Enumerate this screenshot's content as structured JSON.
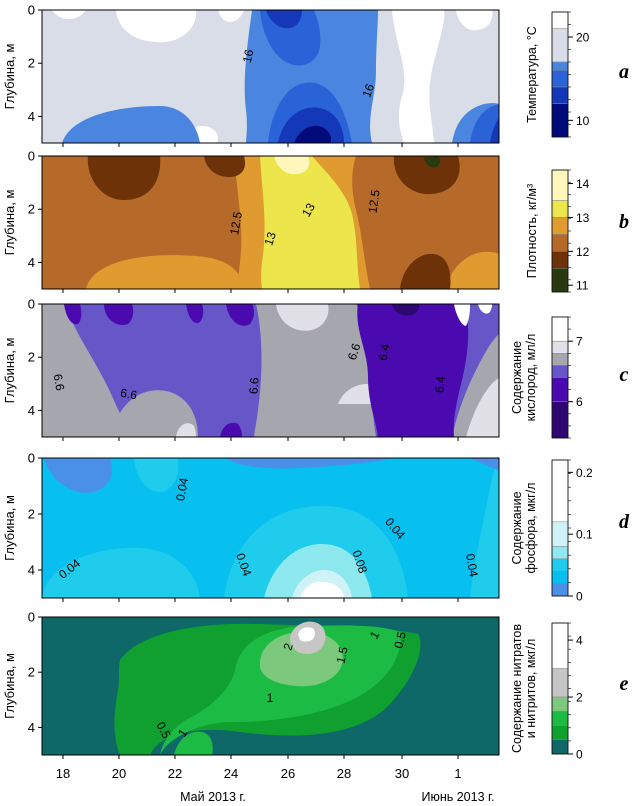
{
  "figure": {
    "x_axis": {
      "tick_labels": [
        "18",
        "20",
        "22",
        "24",
        "26",
        "28",
        "30",
        "1"
      ],
      "month_labels": [
        "Май 2013 г.",
        "Июнь 2013 г."
      ]
    }
  },
  "chart_data": [
    {
      "type": "heatmap",
      "panel_letter": "a",
      "ylabel": "Глубина, м",
      "y_ticks": [
        "0",
        "2",
        "4"
      ],
      "ylim": [
        5,
        0
      ],
      "xlim": [
        "2013-05-17",
        "2013-06-02"
      ],
      "colorbar": {
        "label": "Температура, °С",
        "ticks": [
          "20",
          "10"
        ],
        "range": [
          8,
          23
        ],
        "levels": [
          {
            "from": 21,
            "to": 23,
            "color": "#ffffff"
          },
          {
            "from": 17,
            "to": 21,
            "color": "#d9dde8"
          },
          {
            "from": 16,
            "to": 17,
            "color": "#4a86e0"
          },
          {
            "from": 14,
            "to": 16,
            "color": "#2a62d8"
          },
          {
            "from": 12,
            "to": 14,
            "color": "#1538b8"
          },
          {
            "from": 8,
            "to": 12,
            "color": "#000a78"
          }
        ]
      },
      "contour_labels": [
        "16",
        "16"
      ]
    },
    {
      "type": "heatmap",
      "panel_letter": "b",
      "ylabel": "Глубина, м",
      "y_ticks": [
        "0",
        "2",
        "4"
      ],
      "ylim": [
        5,
        0
      ],
      "xlim": [
        "2013-05-17",
        "2013-06-02"
      ],
      "colorbar": {
        "label": "Плотность, кг/м³",
        "ticks": [
          "14",
          "13",
          "12",
          "11"
        ],
        "range": [
          10.8,
          14.4
        ],
        "levels": [
          {
            "from": 13.5,
            "to": 14.4,
            "color": "#fff6bc"
          },
          {
            "from": 13.0,
            "to": 13.5,
            "color": "#ece64c"
          },
          {
            "from": 12.5,
            "to": 13.0,
            "color": "#df9a30"
          },
          {
            "from": 12.0,
            "to": 12.5,
            "color": "#b56a2a"
          },
          {
            "from": 11.5,
            "to": 12.0,
            "color": "#6e3208"
          },
          {
            "from": 10.8,
            "to": 11.5,
            "color": "#2a3a10"
          }
        ]
      },
      "contour_labels": [
        "12.5",
        "13",
        "13",
        "12.5"
      ]
    },
    {
      "type": "heatmap",
      "panel_letter": "c",
      "ylabel": "Глубина, м",
      "y_ticks": [
        "0",
        "2",
        "4"
      ],
      "ylim": [
        5,
        0
      ],
      "xlim": [
        "2013-05-17",
        "2013-06-02"
      ],
      "colorbar": {
        "label": "Содержание кислород, мл/л",
        "ticks": [
          "7",
          "6"
        ],
        "range": [
          5.4,
          7.4
        ],
        "levels": [
          {
            "from": 7.0,
            "to": 7.4,
            "color": "#ffffff"
          },
          {
            "from": 6.8,
            "to": 7.0,
            "color": "#e0e0e6"
          },
          {
            "from": 6.6,
            "to": 6.8,
            "color": "#a6a6ae"
          },
          {
            "from": 6.4,
            "to": 6.6,
            "color": "#6656c8"
          },
          {
            "from": 6.0,
            "to": 6.4,
            "color": "#4a0ab0"
          },
          {
            "from": 5.4,
            "to": 6.0,
            "color": "#2e0870"
          }
        ]
      },
      "contour_labels": [
        "6.6",
        "6.6",
        "6.6",
        "6.6",
        "6.4",
        "6.4"
      ]
    },
    {
      "type": "heatmap",
      "panel_letter": "d",
      "ylabel": "Глубина, м",
      "y_ticks": [
        "0",
        "2",
        "4"
      ],
      "ylim": [
        5,
        0
      ],
      "xlim": [
        "2013-05-17",
        "2013-06-02"
      ],
      "colorbar": {
        "label": "Содержание фосфора, мкг/л",
        "ticks": [
          "0.2",
          "0.1",
          "0"
        ],
        "range": [
          0,
          0.22
        ],
        "levels": [
          {
            "from": 0.12,
            "to": 0.22,
            "color": "#ffffff"
          },
          {
            "from": 0.08,
            "to": 0.12,
            "color": "#cff2f6"
          },
          {
            "from": 0.06,
            "to": 0.08,
            "color": "#8ee8f0"
          },
          {
            "from": 0.04,
            "to": 0.06,
            "color": "#20ccec"
          },
          {
            "from": 0.02,
            "to": 0.04,
            "color": "#08c0f0"
          },
          {
            "from": 0,
            "to": 0.02,
            "color": "#4a90e8"
          }
        ]
      },
      "contour_labels": [
        "0.04",
        "0.04",
        "0.04",
        "0.08",
        "0.04",
        "0.04"
      ]
    },
    {
      "type": "heatmap",
      "panel_letter": "e",
      "ylabel": "Глубина, м",
      "y_ticks": [
        "0",
        "2",
        "4"
      ],
      "ylim": [
        5,
        0
      ],
      "xlim": [
        "2013-05-17",
        "2013-06-02"
      ],
      "colorbar": {
        "label": "Содержание нитратов и нитритов, мкг/л",
        "ticks": [
          "4",
          "2",
          "0"
        ],
        "range": [
          0,
          4.6
        ],
        "levels": [
          {
            "from": 3.0,
            "to": 4.6,
            "color": "#ffffff"
          },
          {
            "from": 2.0,
            "to": 3.0,
            "color": "#c6c6c6"
          },
          {
            "from": 1.5,
            "to": 2.0,
            "color": "#7cc87c"
          },
          {
            "from": 1.0,
            "to": 1.5,
            "color": "#1cbc44"
          },
          {
            "from": 0.5,
            "to": 1.0,
            "color": "#10a030"
          },
          {
            "from": 0,
            "to": 0.5,
            "color": "#0e6868"
          }
        ]
      },
      "contour_labels": [
        "2",
        "1.5",
        "1",
        "0.5",
        "1",
        "0.5",
        "1"
      ]
    }
  ]
}
